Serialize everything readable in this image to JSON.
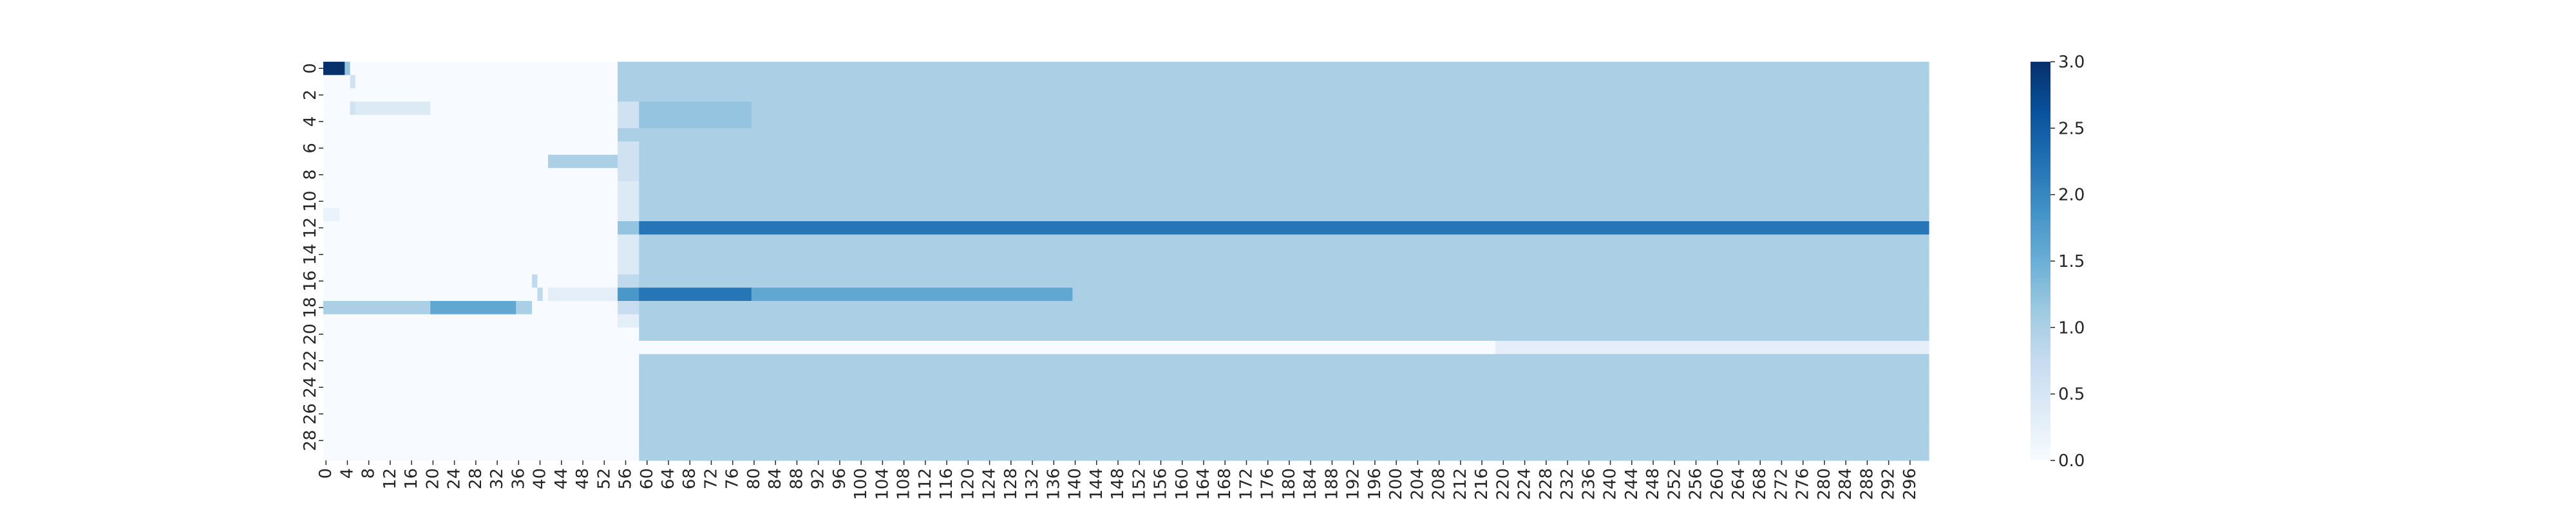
{
  "chart_data": {
    "type": "heatmap",
    "title": "",
    "xlabel": "",
    "ylabel": "",
    "n_cols": 300,
    "n_rows": 30,
    "x_ticks": [
      0,
      4,
      8,
      12,
      16,
      20,
      24,
      28,
      32,
      36,
      40,
      44,
      48,
      52,
      56,
      60,
      64,
      68,
      72,
      76,
      80,
      84,
      88,
      92,
      96,
      100,
      104,
      108,
      112,
      116,
      120,
      124,
      128,
      132,
      136,
      140,
      144,
      148,
      152,
      156,
      160,
      164,
      168,
      172,
      176,
      180,
      184,
      188,
      192,
      196,
      200,
      204,
      208,
      212,
      216,
      220,
      224,
      228,
      232,
      236,
      240,
      244,
      248,
      252,
      256,
      260,
      264,
      268,
      272,
      276,
      280,
      284,
      288,
      292,
      296
    ],
    "y_ticks": [
      0,
      2,
      4,
      6,
      8,
      10,
      12,
      14,
      16,
      18,
      20,
      22,
      24,
      26,
      28
    ],
    "vmin": 0,
    "vmax": 3,
    "colormap": "Blues",
    "colorbar_ticks": [
      "0.0",
      "0.5",
      "1.0",
      "1.5",
      "2.0",
      "2.5",
      "3.0"
    ],
    "colorbar_tick_values": [
      0,
      0.5,
      1,
      1.5,
      2,
      2.5,
      3
    ],
    "default_value": 0,
    "regions": [
      {
        "rows": [
          0,
          20
        ],
        "cols": [
          59,
          299
        ],
        "value": 1
      },
      {
        "rows": [
          21,
          21
        ],
        "cols": [
          59,
          218
        ],
        "value": 0
      },
      {
        "rows": [
          21,
          21
        ],
        "cols": [
          219,
          299
        ],
        "value": 0.3
      },
      {
        "rows": [
          22,
          29
        ],
        "cols": [
          59,
          299
        ],
        "value": 1
      },
      {
        "rows": [
          0,
          19
        ],
        "cols": [
          55,
          58
        ],
        "value": 1
      },
      {
        "rows": [
          3,
          4
        ],
        "cols": [
          59,
          79
        ],
        "value": 1.2
      },
      {
        "rows": [
          12,
          12
        ],
        "cols": [
          55,
          58
        ],
        "value": 1.2
      },
      {
        "rows": [
          12,
          12
        ],
        "cols": [
          59,
          299
        ],
        "value": 2.2
      },
      {
        "rows": [
          17,
          17
        ],
        "cols": [
          55,
          58
        ],
        "value": 1.8
      },
      {
        "rows": [
          17,
          17
        ],
        "cols": [
          59,
          79
        ],
        "value": 2.2
      },
      {
        "rows": [
          17,
          17
        ],
        "cols": [
          80,
          139
        ],
        "value": 1.6
      },
      {
        "rows": [
          3,
          3
        ],
        "cols": [
          55,
          58
        ],
        "value": 0.6
      },
      {
        "rows": [
          4,
          4
        ],
        "cols": [
          55,
          58
        ],
        "value": 0.6
      },
      {
        "rows": [
          6,
          6
        ],
        "cols": [
          55,
          58
        ],
        "value": 0.6
      },
      {
        "rows": [
          7,
          7
        ],
        "cols": [
          55,
          58
        ],
        "value": 0.6
      },
      {
        "rows": [
          8,
          8
        ],
        "cols": [
          55,
          58
        ],
        "value": 0.6
      },
      {
        "rows": [
          9,
          9
        ],
        "cols": [
          55,
          58
        ],
        "value": 0.4
      },
      {
        "rows": [
          10,
          10
        ],
        "cols": [
          55,
          58
        ],
        "value": 0.4
      },
      {
        "rows": [
          11,
          11
        ],
        "cols": [
          55,
          58
        ],
        "value": 0.4
      },
      {
        "rows": [
          13,
          13
        ],
        "cols": [
          55,
          58
        ],
        "value": 0.4
      },
      {
        "rows": [
          14,
          14
        ],
        "cols": [
          55,
          58
        ],
        "value": 0.4
      },
      {
        "rows": [
          15,
          15
        ],
        "cols": [
          55,
          58
        ],
        "value": 0.4
      },
      {
        "rows": [
          16,
          16
        ],
        "cols": [
          55,
          58
        ],
        "value": 0.8
      },
      {
        "rows": [
          18,
          18
        ],
        "cols": [
          55,
          58
        ],
        "value": 0.7
      },
      {
        "rows": [
          19,
          19
        ],
        "cols": [
          55,
          58
        ],
        "value": 0.3
      },
      {
        "rows": [
          0,
          0
        ],
        "cols": [
          0,
          3
        ],
        "value": 3.0
      },
      {
        "rows": [
          0,
          0
        ],
        "cols": [
          4,
          4
        ],
        "value": 1.2
      },
      {
        "rows": [
          1,
          1
        ],
        "cols": [
          5,
          5
        ],
        "value": 0.6
      },
      {
        "rows": [
          3,
          3
        ],
        "cols": [
          5,
          19
        ],
        "value": 0.4
      },
      {
        "rows": [
          3,
          3
        ],
        "cols": [
          5,
          5
        ],
        "value": 0.6
      },
      {
        "rows": [
          7,
          7
        ],
        "cols": [
          42,
          54
        ],
        "value": 1.0
      },
      {
        "rows": [
          11,
          11
        ],
        "cols": [
          0,
          2
        ],
        "value": 0.2
      },
      {
        "rows": [
          16,
          16
        ],
        "cols": [
          39,
          39
        ],
        "value": 0.8
      },
      {
        "rows": [
          17,
          17
        ],
        "cols": [
          40,
          40
        ],
        "value": 0.8
      },
      {
        "rows": [
          17,
          17
        ],
        "cols": [
          42,
          54
        ],
        "value": 0.3
      },
      {
        "rows": [
          18,
          18
        ],
        "cols": [
          0,
          2
        ],
        "value": 1.0
      },
      {
        "rows": [
          18,
          18
        ],
        "cols": [
          3,
          19
        ],
        "value": 1.0
      },
      {
        "rows": [
          18,
          18
        ],
        "cols": [
          20,
          35
        ],
        "value": 1.6
      },
      {
        "rows": [
          18,
          18
        ],
        "cols": [
          36,
          38
        ],
        "value": 1.0
      }
    ]
  }
}
